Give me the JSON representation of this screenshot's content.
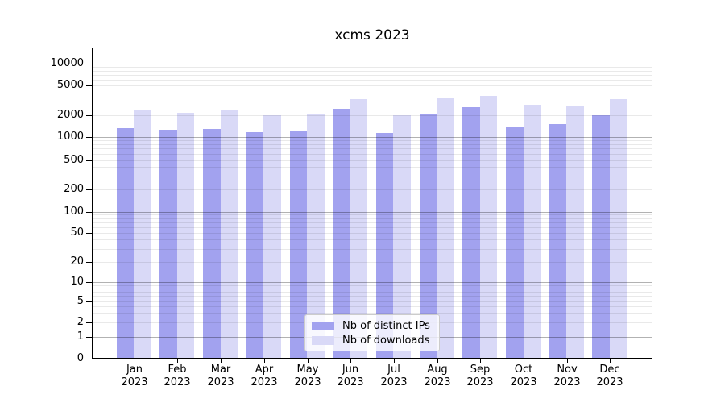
{
  "figure": {
    "background": "#ffffff"
  },
  "chart_data": {
    "type": "bar",
    "title": "xcms 2023",
    "xlabel": "",
    "ylabel": "",
    "categories": [
      "Jan 2023",
      "Feb 2023",
      "Mar 2023",
      "Apr 2023",
      "May 2023",
      "Jun 2023",
      "Jul 2023",
      "Aug 2023",
      "Sep 2023",
      "Oct 2023",
      "Nov 2023",
      "Dec 2023"
    ],
    "series": [
      {
        "name": "Nb of distinct IPs",
        "color": "#a2a2ef",
        "values": [
          1310,
          1230,
          1280,
          1150,
          1200,
          2400,
          1110,
          2060,
          2550,
          1370,
          1480,
          1990
        ]
      },
      {
        "name": "Nb of downloads",
        "color": "#d9d9f7",
        "values": [
          2270,
          2120,
          2270,
          2000,
          2090,
          3270,
          1950,
          3360,
          3570,
          2720,
          2580,
          3270
        ]
      }
    ],
    "yscale": "symlog",
    "y_ticks": [
      0,
      1,
      2,
      5,
      10,
      20,
      50,
      100,
      200,
      500,
      1000,
      2000,
      5000,
      10000
    ],
    "ylim": [
      0,
      20000
    ],
    "grid": "horizontal, log minor gridlines",
    "legend_position": "lower center",
    "colors": {
      "axis": "#000000",
      "gridline_major": "#b3b3b3",
      "gridline_minor": "#eaeaea",
      "legend_border": "#cccccc"
    }
  }
}
